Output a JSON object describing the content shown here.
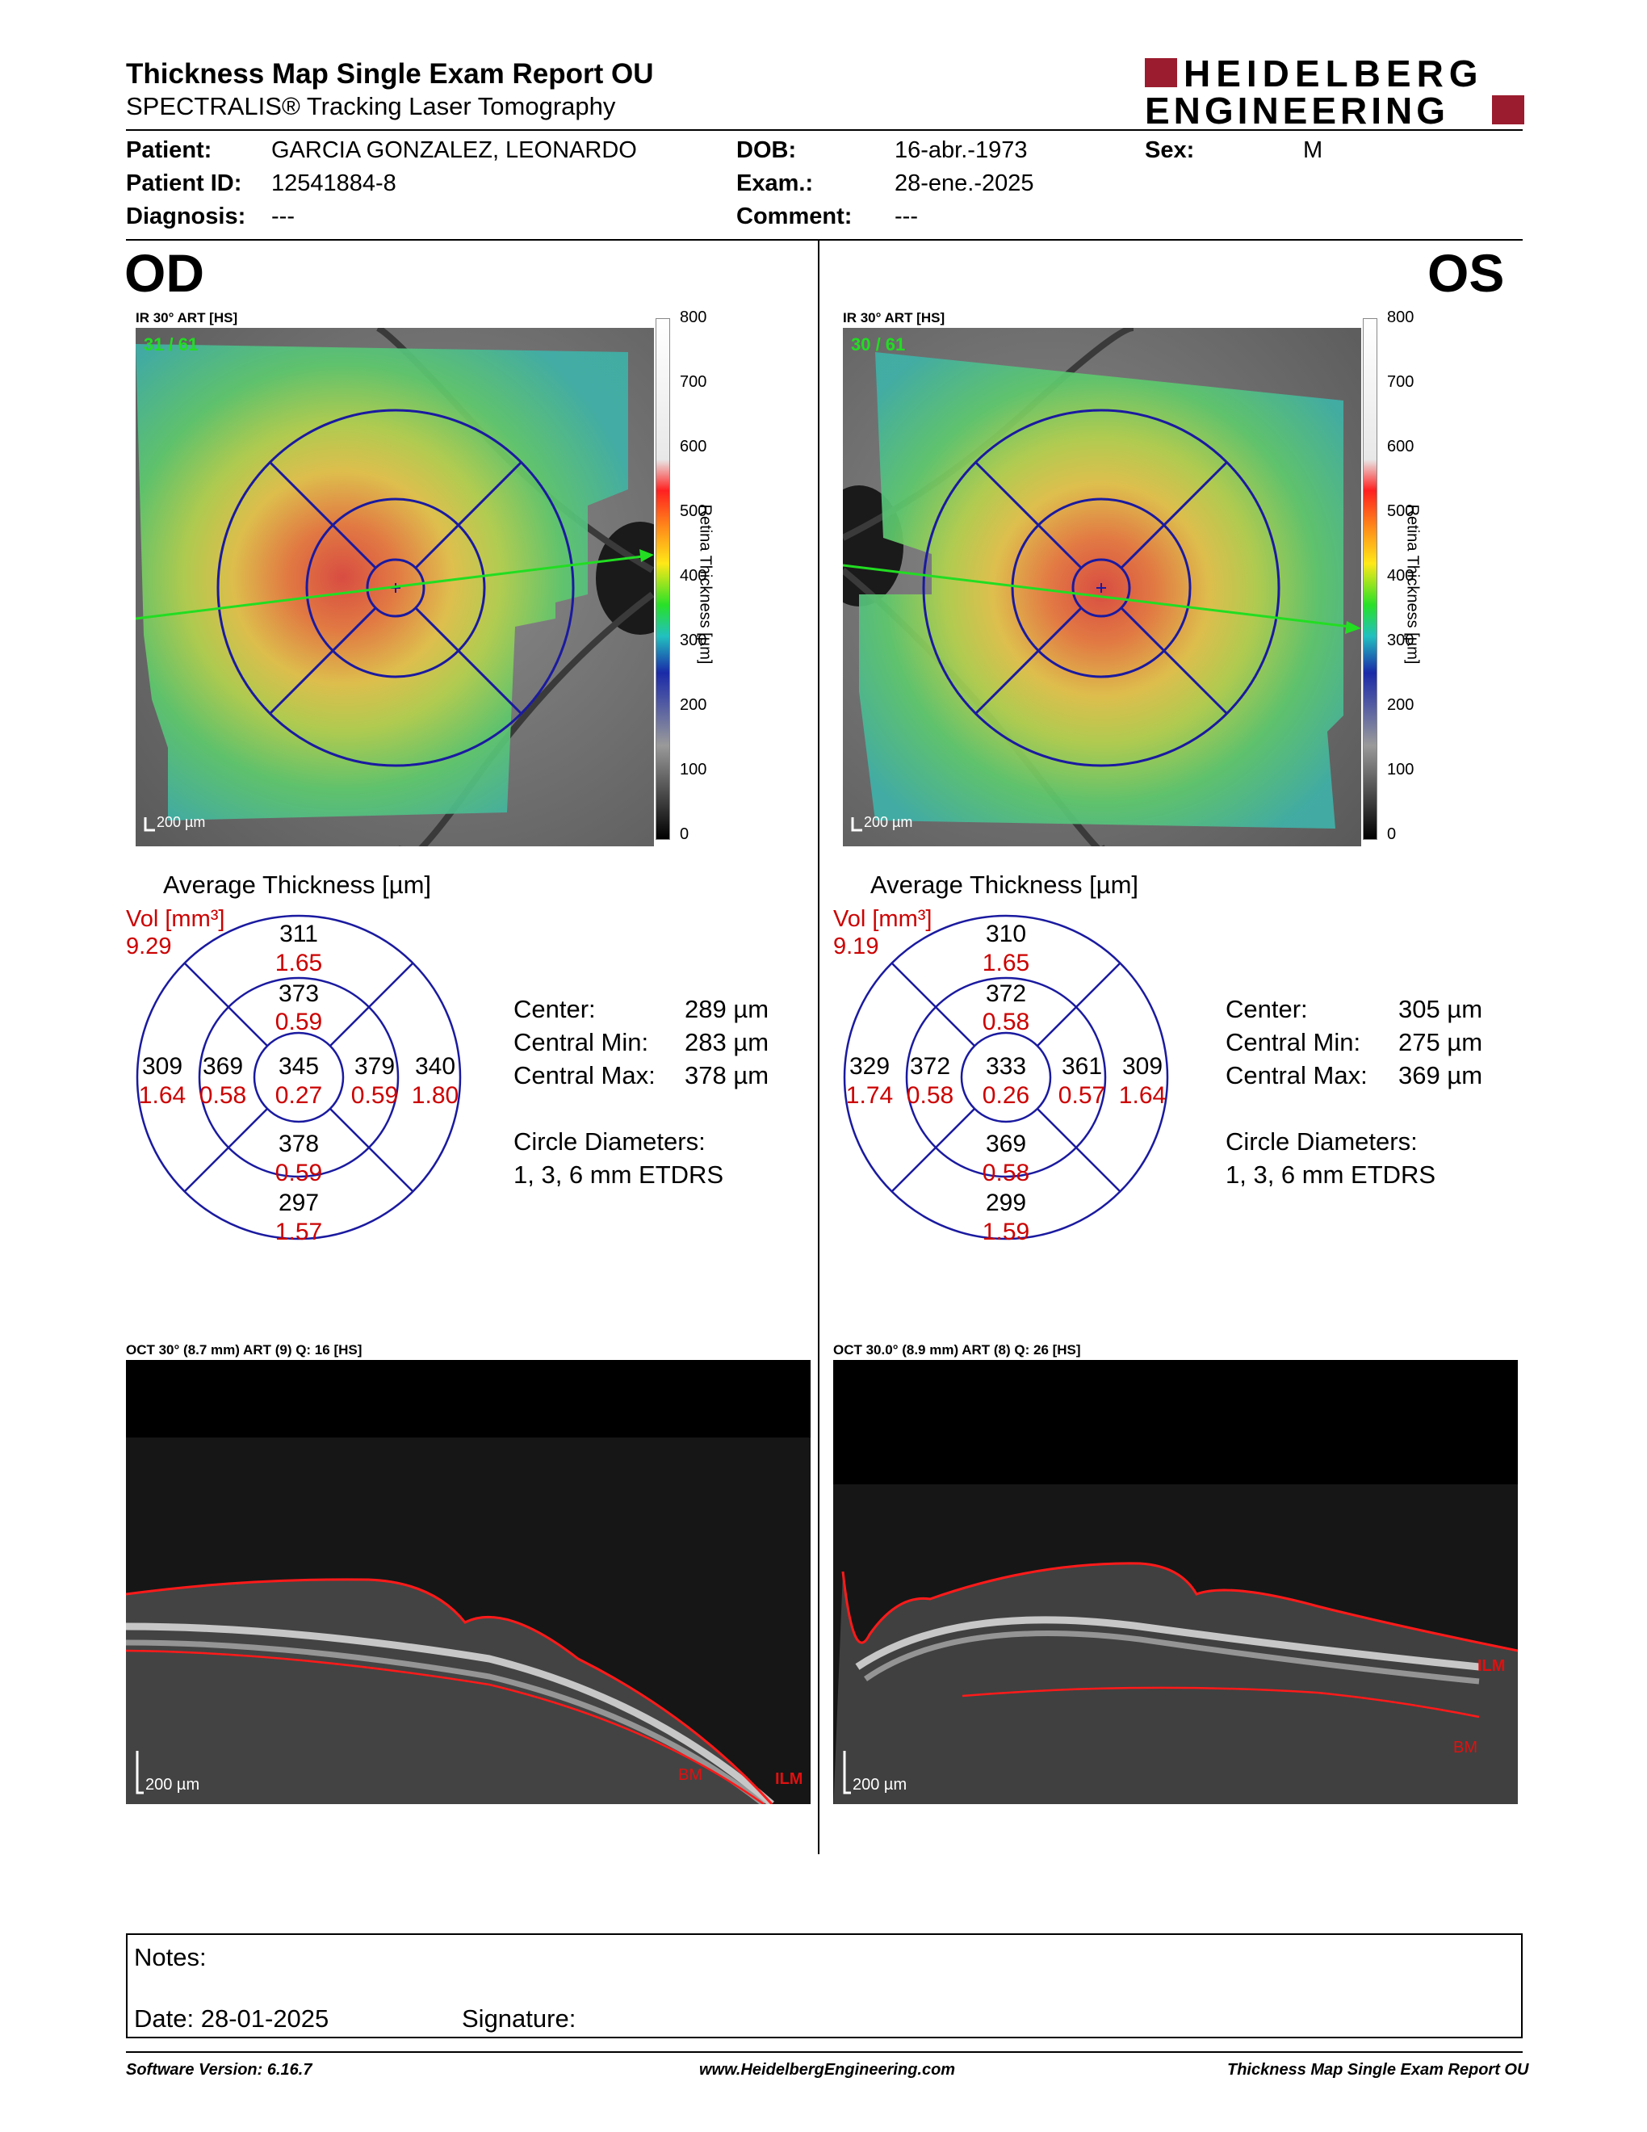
{
  "header": {
    "title": "Thickness Map Single Exam Report OU",
    "subtitle": "SPECTRALIS® Tracking Laser Tomography",
    "logo_line1": "HEIDELBERG",
    "logo_line2": "ENGINEERING"
  },
  "patient": {
    "patient_label": "Patient:",
    "patient_value": "GARCIA GONZALEZ, LEONARDO",
    "id_label": "Patient ID:",
    "id_value": "12541884-8",
    "diagnosis_label": "Diagnosis:",
    "diagnosis_value": "---",
    "dob_label": "DOB:",
    "dob_value": "16-abr.-1973",
    "exam_label": "Exam.:",
    "exam_value": "28-ene.-2025",
    "comment_label": "Comment:",
    "comment_value": "---",
    "sex_label": "Sex:",
    "sex_value": "M"
  },
  "scale": {
    "ticks": [
      "800",
      "700",
      "600",
      "500",
      "400",
      "300",
      "200",
      "100",
      "0"
    ],
    "label": "Retina Thickness [µm]"
  },
  "od": {
    "eye": "OD",
    "ir_title": "IR 30° ART [HS]",
    "frame_count": "31 / 61",
    "scale_bar": "200 µm",
    "avg_title": "Average Thickness [µm]",
    "vol_label": "Vol [mm³]",
    "total_vol": "9.29",
    "grid": {
      "sup_outer": {
        "t": "311",
        "v": "1.65"
      },
      "sup_inner": {
        "t": "373",
        "v": "0.59"
      },
      "center": {
        "t": "345",
        "v": "0.27"
      },
      "left_outer": {
        "t": "309",
        "v": "1.64"
      },
      "left_inner": {
        "t": "369",
        "v": "0.58"
      },
      "right_inner": {
        "t": "379",
        "v": "0.59"
      },
      "right_outer": {
        "t": "340",
        "v": "1.80"
      },
      "inf_inner": {
        "t": "378",
        "v": "0.59"
      },
      "inf_outer": {
        "t": "297",
        "v": "1.57"
      }
    },
    "stats": {
      "center_label": "Center:",
      "center_value": "289 µm",
      "min_label": "Central Min:",
      "min_value": "283 µm",
      "max_label": "Central Max:",
      "max_value": "378 µm",
      "diam_label": "Circle Diameters:",
      "diam_value": "1, 3, 6 mm ETDRS"
    },
    "oct_title": "OCT 30° (8.7 mm) ART (9) Q: 16 [HS]",
    "oct_scale": "200 µm",
    "bm_label": "BM",
    "ilm_label": "ILM"
  },
  "os": {
    "eye": "OS",
    "ir_title": "IR 30° ART [HS]",
    "frame_count": "30 / 61",
    "scale_bar": "200 µm",
    "avg_title": "Average Thickness [µm]",
    "vol_label": "Vol [mm³]",
    "total_vol": "9.19",
    "grid": {
      "sup_outer": {
        "t": "310",
        "v": "1.65"
      },
      "sup_inner": {
        "t": "372",
        "v": "0.58"
      },
      "center": {
        "t": "333",
        "v": "0.26"
      },
      "left_outer": {
        "t": "329",
        "v": "1.74"
      },
      "left_inner": {
        "t": "372",
        "v": "0.58"
      },
      "right_inner": {
        "t": "361",
        "v": "0.57"
      },
      "right_outer": {
        "t": "309",
        "v": "1.64"
      },
      "inf_inner": {
        "t": "369",
        "v": "0.58"
      },
      "inf_outer": {
        "t": "299",
        "v": "1.59"
      }
    },
    "stats": {
      "center_label": "Center:",
      "center_value": "305 µm",
      "min_label": "Central Min:",
      "min_value": "275 µm",
      "max_label": "Central Max:",
      "max_value": "369 µm",
      "diam_label": "Circle Diameters:",
      "diam_value": "1, 3, 6 mm ETDRS"
    },
    "oct_title": "OCT 30.0° (8.9 mm) ART (8) Q: 26 [HS]",
    "oct_scale": "200 µm",
    "bm_label": "BM",
    "ilm_label": "ILM"
  },
  "notes": {
    "notes_label": "Notes:",
    "date_label": "Date: 28-01-2025",
    "signature_label": "Signature:"
  },
  "footer": {
    "version": "Software Version: 6.16.7",
    "url": "www.HeidelbergEngineering.com",
    "report_name": "Thickness Map Single Exam Report OU"
  },
  "colors": {
    "brand_red": "#9b1c2e",
    "grid_blue": "#1a1aa0",
    "value_red": "#cc0000",
    "scan_green": "#22dd22"
  }
}
